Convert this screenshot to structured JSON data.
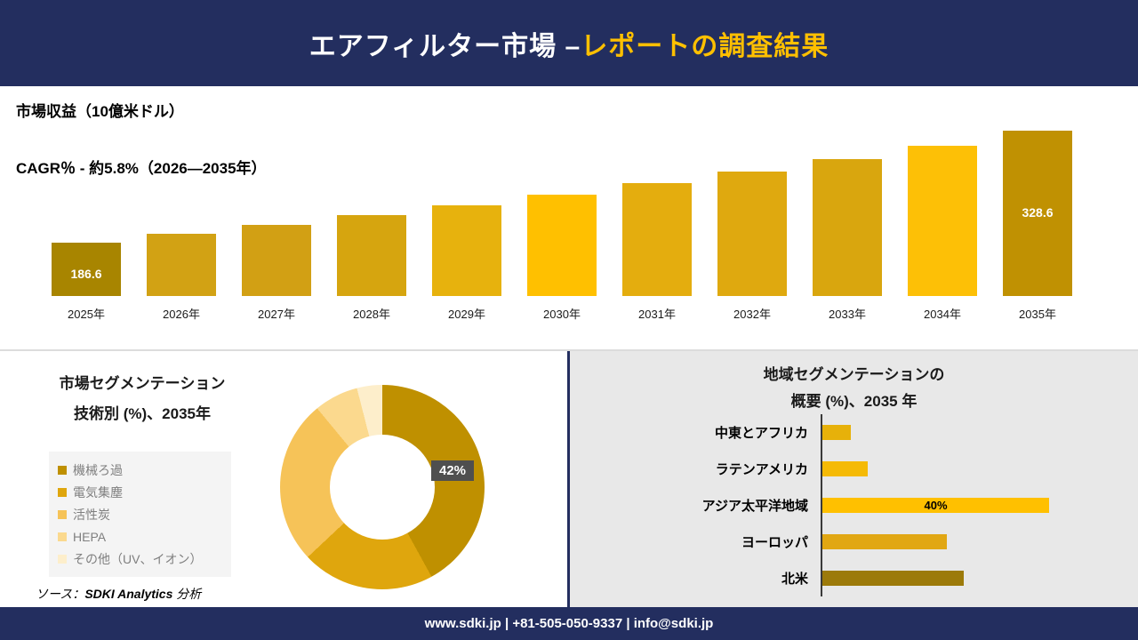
{
  "header": {
    "title_white": "エアフィルター市場 –",
    "title_accent": "レポートの調査結果"
  },
  "footer": {
    "contact": "www.sdki.jp | +81-505-050-9337 | info@sdki.jp"
  },
  "colors": {
    "navy": "#232e5f",
    "accent_gold": "#ffc000",
    "panel_gray": "#e8e8e8"
  },
  "revenue": {
    "metric_label": "市場収益（10億米ドル）",
    "cagr_label": "CAGR％ - 約5.8%（2026―2035年）"
  },
  "segmentation": {
    "title_line1": "市場セグメンテーション",
    "title_line2": "技術別 (%)、2035年",
    "callout": "42%",
    "source_prefix": "ソース：",
    "source_brand": "SDKI Analytics",
    "source_suffix": " 分析"
  },
  "regional": {
    "title_line1": "地域セグメンテーションの",
    "title_line2": "概要 (%)、2035 年",
    "callout": "40%"
  },
  "chart_data": [
    {
      "type": "bar",
      "title": "市場収益（10億米ドル）",
      "subtitle": "CAGR％ - 約5.8%（2026―2035年）",
      "categories": [
        "2025年",
        "2026年",
        "2027年",
        "2028年",
        "2029年",
        "2030年",
        "2031年",
        "2032年",
        "2033年",
        "2034年",
        "2035年"
      ],
      "values": [
        186.6,
        197.4,
        208.9,
        221.0,
        233.8,
        247.4,
        261.7,
        276.9,
        293.0,
        310.0,
        328.6
      ],
      "data_labels": {
        "2025年": "186.6",
        "2035年": "328.6"
      },
      "bar_colors": [
        "#a88500",
        "#d2a214",
        "#d2a014",
        "#d6a50f",
        "#e7b20d",
        "#ffc000",
        "#e4ad0e",
        "#dfa90f",
        "#d9a60e",
        "#fdc006",
        "#c09102"
      ],
      "ylabel": "10億米ドル",
      "grid": false,
      "legend_position": "none"
    },
    {
      "type": "pie",
      "donut": true,
      "title": "市場セグメンテーション 技術別 (%)、2035年",
      "labels": [
        "機械ろ過",
        "電気集塵",
        "活性炭",
        "HEPA",
        "その他（UV、イオン）"
      ],
      "values": [
        42,
        21,
        26,
        7,
        4
      ],
      "colors": [
        "#bf9000",
        "#dfa60d",
        "#f6c358",
        "#fbd98e",
        "#fdeecb"
      ],
      "annotation": "42%",
      "legend_position": "left"
    },
    {
      "type": "bar",
      "orientation": "horizontal",
      "title": "地域セグメンテーションの概要 (%)、2035 年",
      "categories": [
        "中東とアフリカ",
        "ラテンアメリカ",
        "アジア太平洋地域",
        "ヨーロッパ",
        "北米"
      ],
      "values": [
        5,
        8,
        40,
        22,
        25
      ],
      "colors": [
        "#e7b10a",
        "#f5ba06",
        "#ffc000",
        "#e1a713",
        "#9c7a0a"
      ],
      "data_labels": {
        "アジア太平洋地域": "40%"
      },
      "xlim": [
        0,
        40
      ],
      "grid": false,
      "legend_position": "none"
    }
  ]
}
